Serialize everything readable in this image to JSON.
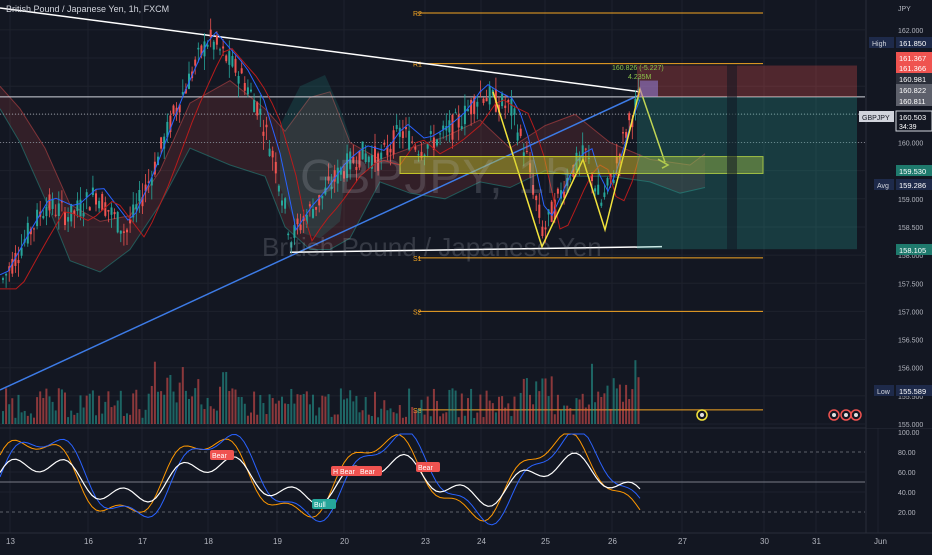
{
  "header": {
    "title": "British Pound / Japanese Yen, 1h, FXCM"
  },
  "watermark": {
    "symbol": "GBPJPY, 1h",
    "name": "British Pound / Japanese Yen"
  },
  "colors": {
    "background": "#131722",
    "grid": "#1e222d",
    "bull": "#26a69a",
    "bear": "#ef5350",
    "pivot": "#f5a623",
    "trendline": "#ffffff",
    "ascending": "#3d7be6",
    "projection": "#f2e33c",
    "macd_fast": "#2962ff",
    "macd_slow": "#ff9800",
    "rsi": "#ffffff"
  },
  "price_axis": {
    "currency": "JPY",
    "ticks": [
      "162.000",
      "161.500",
      "161.000",
      "160.500",
      "160.000",
      "159.500",
      "159.000",
      "158.500",
      "158.000",
      "157.500",
      "157.000",
      "156.500",
      "156.000",
      "155.500",
      "155.000"
    ]
  },
  "price_badges": [
    {
      "label": "High",
      "value": "161.850",
      "color": "#1e2a4a"
    },
    {
      "label": "",
      "value": "161.367",
      "color": "#ef5350"
    },
    {
      "label": "",
      "value": "161.366",
      "color": "#ef5350"
    },
    {
      "label": "",
      "value": "160.981",
      "color": "#2a2e39"
    },
    {
      "label": "",
      "value": "160.822",
      "color": "#5d606b"
    },
    {
      "label": "",
      "value": "160.811",
      "color": "#5d606b"
    },
    {
      "label": "GBPJPY",
      "value": "160.503",
      "sub": "34:39",
      "color": "#131722"
    },
    {
      "label": "",
      "value": "159.530",
      "color": "#1f7a6d"
    },
    {
      "label": "Avg",
      "value": "159.286",
      "color": "#1e2a4a"
    },
    {
      "label": "",
      "value": "158.105",
      "color": "#1f7a6d"
    },
    {
      "label": "Low",
      "value": "155.589",
      "color": "#1e2a4a"
    }
  ],
  "time_axis": {
    "labels": [
      "13",
      "16",
      "17",
      "18",
      "19",
      "20",
      "23",
      "24",
      "25",
      "26",
      "27",
      "30",
      "31",
      "Jun"
    ]
  },
  "pivots": [
    {
      "name": "R2",
      "value": 162.3
    },
    {
      "name": "R1",
      "value": 161.4
    },
    {
      "name": "S1",
      "value": 157.95
    },
    {
      "name": "S2",
      "value": 157.0
    },
    {
      "name": "S3",
      "value": 155.25
    }
  ],
  "position_label": {
    "line1": "160.826 (-5.227)",
    "line2": "4.235M"
  },
  "indicator_axis": {
    "ticks": [
      "100.00",
      "80.00",
      "60.00",
      "40.00",
      "20.00"
    ]
  },
  "stoch_markers": [
    {
      "text": "Bear",
      "kind": "bear"
    },
    {
      "text": "H Bear",
      "kind": "bear"
    },
    {
      "text": "Bear",
      "kind": "bear"
    },
    {
      "text": "Bear",
      "kind": "bear"
    },
    {
      "text": "Bull",
      "kind": "bull"
    }
  ],
  "chart_data": {
    "type": "candlestick",
    "title": "British Pound / Japanese Yen, 1h, FXCM",
    "y_range": [
      155.0,
      162.3
    ],
    "days": [
      "13",
      "16",
      "17",
      "18",
      "19",
      "20",
      "23",
      "24",
      "25",
      "26"
    ],
    "key_prices": {
      "high": 161.85,
      "low": 155.589,
      "last": 160.503,
      "avg": 159.286,
      "target": 159.53,
      "stop": 161.367
    }
  }
}
